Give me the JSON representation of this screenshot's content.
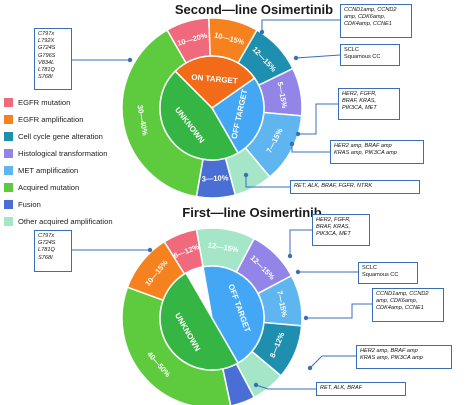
{
  "chart_data": [
    {
      "type": "donut",
      "title": "Second—line Osimertinib",
      "inner_ring": [
        {
          "label": "ON TARGET",
          "category": "EGFR amplification"
        },
        {
          "label": "OFF TARGET",
          "category": "Other acquired amplification"
        },
        {
          "label": "UNKNOWN",
          "category": "Acquired mutation"
        }
      ],
      "outer_ring": [
        {
          "label": "10—20%",
          "category": "EGFR mutation"
        },
        {
          "label": "10—15%",
          "category": "EGFR amplification"
        },
        {
          "label": "12—15%",
          "category": "Cell cycle gene alteration"
        },
        {
          "label": "5—15%",
          "category": "Histological transformation"
        },
        {
          "label": "7—15%",
          "category": "MET amplification"
        },
        {
          "label": "",
          "category": "Other acquired amplification"
        },
        {
          "label": "3—10%",
          "category": "Fusion"
        },
        {
          "label": "30—40%",
          "category": "Acquired mutation"
        }
      ]
    },
    {
      "type": "donut",
      "title": "First—line Osimertinib",
      "inner_ring": [
        {
          "label": "OFF TARGET",
          "category": "Other acquired amplification"
        },
        {
          "label": "UNKNOWN",
          "category": "Acquired mutation"
        }
      ],
      "outer_ring": [
        {
          "label": "12—15%",
          "category": "Other acquired amplification"
        },
        {
          "label": "12—15%",
          "category": "Histological transformation"
        },
        {
          "label": "7—15%",
          "category": "MET amplification"
        },
        {
          "label": "8—12%",
          "category": "Cell cycle gene alteration"
        },
        {
          "label": "",
          "category": "Other acquired amplification"
        },
        {
          "label": "",
          "category": "Fusion"
        },
        {
          "label": "40—50%",
          "category": "Acquired mutation"
        },
        {
          "label": "10—15%",
          "category": "EGFR amplification"
        },
        {
          "label": "6—12%",
          "category": "EGFR mutation"
        }
      ]
    }
  ],
  "legend": [
    {
      "label": "EGFR mutation",
      "color": "#f0697c"
    },
    {
      "label": "EGFR amplification",
      "color": "#f5821f"
    },
    {
      "label": "Cell cycle gene alteration",
      "color": "#1f8fb0"
    },
    {
      "label": "Histological transformation",
      "color": "#9385e8"
    },
    {
      "label": "MET amplification",
      "color": "#5fb5f0"
    },
    {
      "label": "Acquired mutation",
      "color": "#5ecb3f"
    },
    {
      "label": "Fusion",
      "color": "#4a6fd4"
    },
    {
      "label": "Other acquired amplification",
      "color": "#a6e6c8"
    }
  ],
  "colors": {
    "egfr_mutation": "#f0697c",
    "egfr_amp": "#f5821f",
    "cell_cycle": "#1f8fb0",
    "histo": "#9385e8",
    "met": "#5fb5f0",
    "mutation": "#5ecb3f",
    "fusion": "#4a6fd4",
    "other_amp": "#a6e6c8",
    "off_target_inner": "#44a7f5",
    "unknown_inner": "#35b544",
    "on_target_inner": "#f26b18",
    "connector": "#3a6fb8"
  },
  "annotations": {
    "second": {
      "egfr_mutations": "C797x\nL792X\nG724S\nG796S\nV834L\nL781Q\nS768I",
      "cell_cycle": "CCND1amp, CCND2\namp, CDK6amp,\nCDK4amp, CCNE1",
      "sclc": "SCLC\nSquamous CC",
      "amp": "HER2, FGFR,\nBRAF, KRAS,\nPIK3CA, MET",
      "mutation": "HER2 amp, BRAF amp\nKRAS amp, PIK3CA amp",
      "fusion": "RET, ALK, BRAF, FGFR, NTRK"
    },
    "first": {
      "egfr_mutations": "C797x\nG724S\nL781Q\nS768I",
      "amp": "HER2, FGFR,\nBRAF, KRAS,\nPIK3CA, MET",
      "sclc": "SCLC\nSquamous CC",
      "cell_cycle": "CCND1amp, CCND2\namp, CDK6amp,\nCDK4amp, CCNE1",
      "mutation": "HER2 amp, BRAF amp\nKRAS amp, PIK3CA amp",
      "fusion": "RET, ALK, BRAF"
    }
  }
}
